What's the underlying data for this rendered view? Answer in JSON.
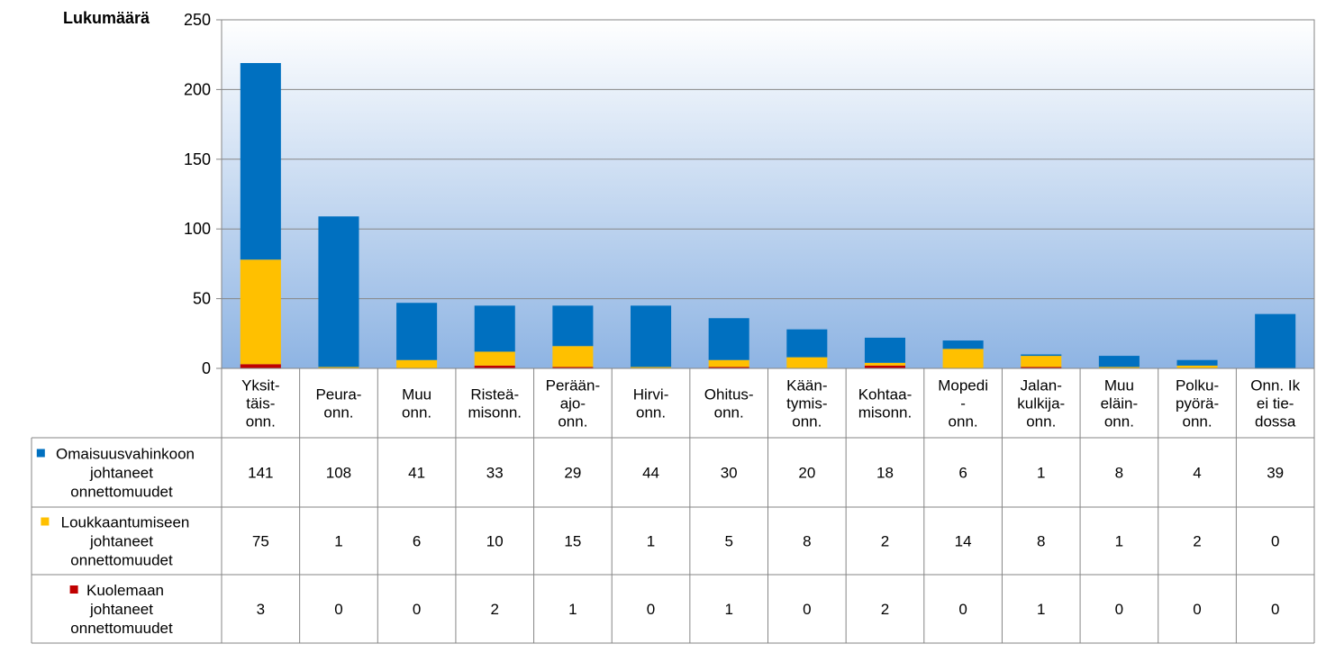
{
  "chart_data": {
    "type": "bar",
    "stacked": true,
    "ylabel": "Lukumäärä",
    "ylim": [
      0,
      250
    ],
    "yticks": [
      0,
      50,
      100,
      150,
      200,
      250
    ],
    "grid": true,
    "plot_background": "gradient-white-to-blue",
    "legend_placement": "data-table-below",
    "categories": [
      [
        "Yksit-",
        "täis-",
        "onn."
      ],
      [
        "Peura-",
        "onn."
      ],
      [
        "Muu",
        "onn."
      ],
      [
        "Risteä-",
        "misonn."
      ],
      [
        "Perään-",
        "ajo-",
        "onn."
      ],
      [
        "Hirvi-",
        "onn."
      ],
      [
        "Ohitus-",
        "onn."
      ],
      [
        "Kään-",
        "tymis-",
        "onn."
      ],
      [
        "Kohtaa-",
        "misonn."
      ],
      [
        "Mopedi",
        "-",
        "onn."
      ],
      [
        "Jalan-",
        "kulkija-",
        "onn."
      ],
      [
        "Muu",
        "eläin-",
        "onn."
      ],
      [
        "Polku-",
        "pyörä-",
        "onn."
      ],
      [
        "Onn. Ik",
        "ei tie-",
        "dossa"
      ]
    ],
    "series": [
      {
        "name": [
          "Kuolemaan",
          "johtaneet",
          "onnettomuudet"
        ],
        "color": "#c00000",
        "values": [
          3,
          0,
          0,
          2,
          1,
          0,
          1,
          0,
          2,
          0,
          1,
          0,
          0,
          0
        ]
      },
      {
        "name": [
          "Loukkaantumiseen",
          "johtaneet",
          "onnettomuudet"
        ],
        "color": "#ffc000",
        "values": [
          75,
          1,
          6,
          10,
          15,
          1,
          5,
          8,
          2,
          14,
          8,
          1,
          2,
          0
        ]
      },
      {
        "name": [
          "Omaisuusvahinkoon",
          "johtaneet",
          "onnettomuudet"
        ],
        "color": "#0070c0",
        "values": [
          141,
          108,
          41,
          33,
          29,
          44,
          30,
          20,
          18,
          6,
          1,
          8,
          4,
          39
        ]
      }
    ],
    "table_row_order": [
      2,
      1,
      0
    ]
  }
}
